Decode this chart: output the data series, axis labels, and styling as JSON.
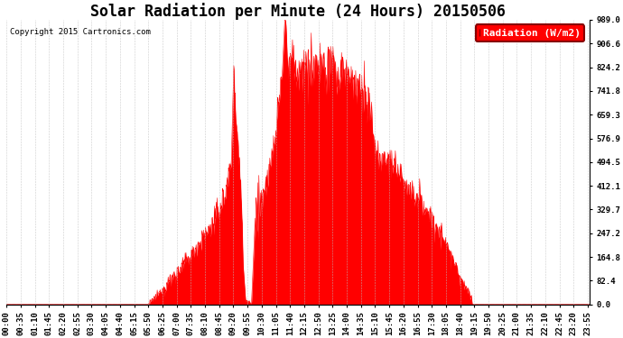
{
  "title": "Solar Radiation per Minute (24 Hours) 20150506",
  "copyright_text": "Copyright 2015 Cartronics.com",
  "legend_label": "Radiation (W/m2)",
  "fill_color": "#ff0000",
  "line_color": "#ff0000",
  "background_color": "#ffffff",
  "grid_color": "#c0c0c0",
  "dashed_line_color": "#ff0000",
  "ylim": [
    0.0,
    989.0
  ],
  "yticks": [
    0.0,
    82.4,
    164.8,
    247.2,
    329.7,
    412.1,
    494.5,
    576.9,
    659.3,
    741.8,
    824.2,
    906.6,
    989.0
  ],
  "total_minutes": 1440,
  "title_fontsize": 12,
  "tick_fontsize": 6.5,
  "legend_fontsize": 8
}
